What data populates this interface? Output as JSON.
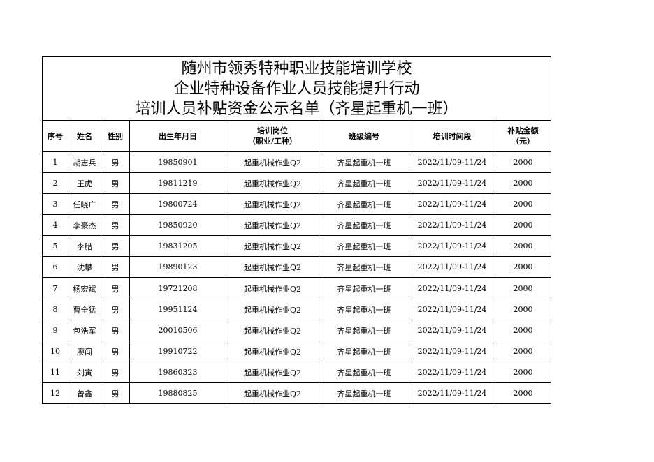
{
  "title": {
    "line1": "随州市领秀特种职业技能培训学校",
    "line2": "企业特种设备作业人员技能提升行动",
    "line3": "培训人员补贴资金公示名单（齐星起重机一班）"
  },
  "headers": [
    "序号",
    "姓名",
    "性别",
    "出生年月日",
    "培训岗位\n（职业/工种）",
    "班级编号",
    "培训时间段",
    "补贴金额\n（元）"
  ],
  "rows": [
    [
      "1",
      "胡志兵",
      "男",
      "19850901",
      "起重机械作业Q2",
      "齐星起重机一班",
      "2022/11/09-11/24",
      "2000"
    ],
    [
      "2",
      "王虎",
      "男",
      "19811219",
      "起重机械作业Q2",
      "齐星起重机一班",
      "2022/11/09-11/24",
      "2000"
    ],
    [
      "3",
      "任晓广",
      "男",
      "19800724",
      "起重机械作业Q2",
      "齐星起重机一班",
      "2022/11/09-11/24",
      "2000"
    ],
    [
      "4",
      "李豪杰",
      "男",
      "19850920",
      "起重机械作业Q2",
      "齐星起重机一班",
      "2022/11/09-11/24",
      "2000"
    ],
    [
      "5",
      "李腊",
      "男",
      "19831205",
      "起重机械作业Q2",
      "齐星起重机一班",
      "2022/11/09-11/24",
      "2000"
    ],
    [
      "6",
      "沈攀",
      "男",
      "19890123",
      "起重机械作业Q2",
      "齐星起重机一班",
      "2022/11/09-11/24",
      "2000"
    ],
    [
      "7",
      "杨宏斌",
      "男",
      "19721208",
      "起重机械作业Q2",
      "齐星起重机一班",
      "2022/11/09-11/24",
      "2000"
    ],
    [
      "8",
      "曹全猛",
      "男",
      "19951124",
      "起重机械作业Q2",
      "齐星起重机一班",
      "2022/11/09-11/24",
      "2000"
    ],
    [
      "9",
      "包浩军",
      "男",
      "20010506",
      "起重机械作业Q2",
      "齐星起重机一班",
      "2022/11/09-11/24",
      "2000"
    ],
    [
      "10",
      "廖闯",
      "男",
      "19910722",
      "起重机械作业Q2",
      "齐星起重机一班",
      "2022/11/09-11/24",
      "2000"
    ],
    [
      "11",
      "刘寅",
      "男",
      "19860323",
      "起重机械作业Q2",
      "齐星起重机一班",
      "2022/11/09-11/24",
      "2000"
    ],
    [
      "12",
      "曾鑫",
      "男",
      "19880825",
      "起重机械作业Q2",
      "齐星起重机一班",
      "2022/11/09-11/24",
      "2000"
    ]
  ]
}
